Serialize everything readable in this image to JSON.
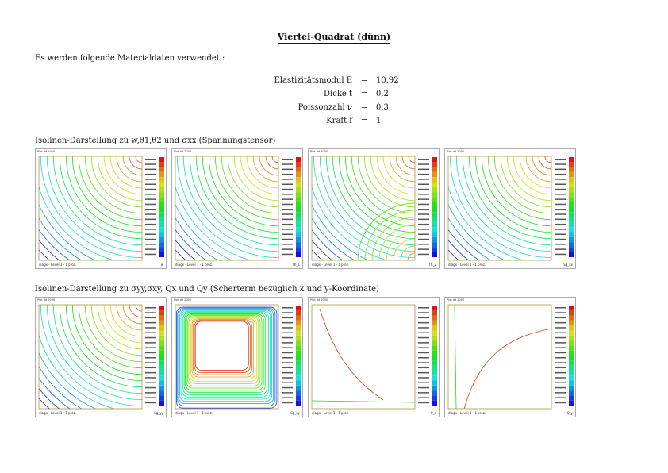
{
  "title": "Viertel-Quadrat (dünn)",
  "intro": "Es werden folgende Materialdaten verwendet :",
  "params": [
    {
      "label": "Elastizitätsmodul E",
      "eq": "=",
      "value": "10.92"
    },
    {
      "label": "Dicke t",
      "eq": "=",
      "value": "0.2"
    },
    {
      "label": "Poissonzahl ν",
      "eq": "=",
      "value": "0.3"
    },
    {
      "label": "Kraft f",
      "eq": "=",
      "value": "1"
    }
  ],
  "caption1": "Isolinen-Darstellung zu w,θ1,θ2 und σxx (Spannungstensor)",
  "caption2": "Isolinen-Darstellung zu σyy,σxy, Qx und Qy (Scherterm bezüglich x und y-Koordinate)",
  "plots": [
    {
      "header": "Plot  dd 2000",
      "footer": "diagx - Level 1 - 1 proz.",
      "var": "w",
      "kind": "arcs_tr"
    },
    {
      "header": "Plot  dd 2000",
      "footer": "diagx - Level 1 - 1 proz.",
      "var": "Th_1",
      "kind": "arcs_tr"
    },
    {
      "header": "Plot  dd 2000",
      "footer": "diagx - Level 1 - 1 proz.",
      "var": "Th_2",
      "kind": "arcs_mixed"
    },
    {
      "header": "Plot  dd 2000",
      "footer": "diagx - Level 1 - 1 proz.",
      "var": "Sg_xx",
      "kind": "arcs_tr"
    },
    {
      "header": "Plot  dd 2000",
      "footer": "diagx - Level 1 - 1 proz.",
      "var": "Sg_yy",
      "kind": "arcs_tr"
    },
    {
      "header": "Plot  dd 2000",
      "footer": "diagx - Level 1 - 1 proz.",
      "var": "Sg_xy",
      "kind": "rects"
    },
    {
      "header": "Plot  dd 2000",
      "footer": "diagx - Level 1 - 1 proz.",
      "var": "Q_x",
      "kind": "sparse_x"
    },
    {
      "header": "Plot  dd 2000",
      "footer": "diagx - Level 1 - 1 proz.",
      "var": "Q_y",
      "kind": "sparse_y"
    }
  ],
  "colors": {
    "frame": "#9a8a2a",
    "blue": "#2040d0",
    "red": "#d04010"
  }
}
